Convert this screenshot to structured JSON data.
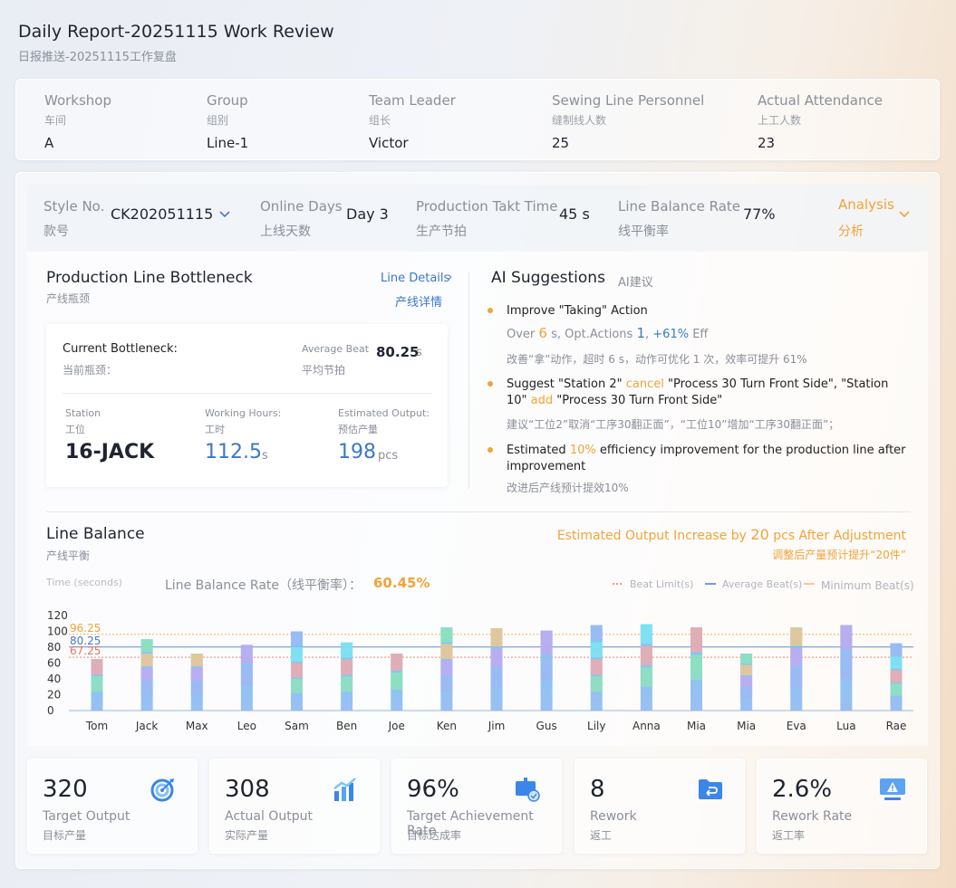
{
  "header": {
    "title": "Daily Report-20251115 Work Review",
    "subtitle": "日报推送-20251115工作复盘"
  },
  "info": [
    {
      "label": "Workshop",
      "cn": "车间",
      "value": "A"
    },
    {
      "label": "Group",
      "cn": "组别",
      "value": "Line-1"
    },
    {
      "label": "Team Leader",
      "cn": "组长",
      "value": "Victor"
    },
    {
      "label": "Sewing Line Personnel",
      "cn": "缝制线人数",
      "value": "25"
    },
    {
      "label": "Actual Attendance",
      "cn": "上工人数",
      "value": "23"
    }
  ],
  "style_bar": {
    "style_label": "Style No.",
    "style_cn": "款号",
    "style_value": "CK202051115",
    "days_label": "Online Days",
    "days_cn": "上线天数",
    "days_value": "Day 3",
    "takt_label": "Production Takt Time",
    "takt_cn": "生产节拍",
    "takt_value": "45 s",
    "balance_label": "Line Balance Rate",
    "balance_cn": "线平衡率",
    "balance_value": "77%",
    "analysis_label": "Analysis",
    "analysis_cn": "分析"
  },
  "bottleneck": {
    "title": "Production Line Bottleneck",
    "cn": "产线瓶颈",
    "details_label": "Line Details",
    "details_cn": "产线详情",
    "current_label": "Current Bottleneck:",
    "current_cn": "当前瓶颈：",
    "avg_label": "Average Beat",
    "avg_cn": "平均节拍",
    "avg_value": "80.25",
    "avg_unit": "s",
    "station_label": "Station",
    "station_cn": "工位",
    "station_value": "16-JACK",
    "hours_label": "Working Hours:",
    "hours_cn": "工时",
    "hours_value": "112.5",
    "hours_unit": "s",
    "output_label": "Estimated Output:",
    "output_cn": "预估产量",
    "output_value": "198",
    "output_unit": "pcs"
  },
  "ai": {
    "title": "AI Suggestions",
    "cn": "AI建议",
    "s1_title": "Improve \"Taking\" Action",
    "s1_a": "Over ",
    "s1_b": "6",
    "s1_c": " s, Opt.Actions ",
    "s1_d": "1",
    "s1_e": ",  ",
    "s1_f": "+61%",
    "s1_g": " Eff",
    "s1_cn": "改善“拿”动作，超时 6 s，动作可优化 1 次，效率可提升 61%",
    "s2_a": "Suggest \"Station 2\" ",
    "s2_b": "cancel",
    "s2_c": " \"Process 30 Turn Front Side\", \"Station 10\" ",
    "s2_d": "add",
    "s2_e": " \"Process 30 Turn Front Side\"",
    "s2_cn": "建议“工位2”取消“工序30翻正面”，“工位10”增加“工序30翻正面”；",
    "s3_a": "Estimated ",
    "s3_b": "10%",
    "s3_c": " efficiency improvement for the production line after improvement",
    "s3_cn": "改进后产线预计提效10%"
  },
  "balance": {
    "title": "Line Balance",
    "cn": "产线平衡",
    "increase_a": "Estimated Output Increase by ",
    "increase_b": "20",
    "increase_c": " pcs After Adjustment",
    "increase_cn": "调整后产量预计提升“20件”",
    "time_label": "Time (seconds)",
    "rate_label": "Line Balance Rate（线平衡率）：",
    "rate_value": "60.45%"
  },
  "chart_data": {
    "type": "bar",
    "ylim": [
      0,
      120
    ],
    "yticks": [
      0,
      20,
      40,
      60,
      80,
      100,
      120
    ],
    "legend": [
      {
        "name": "Beat Limit(s)",
        "color": "#e8735a"
      },
      {
        "name": "Average Beat(s)",
        "color": "#4a78c8"
      },
      {
        "name": "Minimum Beat(s)",
        "color": "#f2b97a"
      }
    ],
    "ref_lines": [
      {
        "name": "Minimum Beat(s)",
        "value": 96.25,
        "label": "96.25",
        "color": "#f2a33a"
      },
      {
        "name": "Average Beat(s)",
        "value": 80.25,
        "label": "80.25",
        "color": "#4a78c8"
      },
      {
        "name": "Beat Limit(s)",
        "value": 67.25,
        "label": "67.25",
        "color": "#e8735a"
      }
    ],
    "categories": [
      "Tom",
      "Jack",
      "Max",
      "Leo",
      "Sam",
      "Ben",
      "Joe",
      "Ken",
      "Jim",
      "Gus",
      "Lily",
      "Anna",
      "Mia",
      "Mia",
      "Eva",
      "Lua",
      "Rae"
    ],
    "values": [
      65,
      90,
      72,
      83,
      100,
      86,
      72,
      105,
      104,
      101,
      108,
      109,
      105,
      72,
      105,
      108,
      85
    ]
  },
  "kpis": [
    {
      "value": "320",
      "label": "Target Output",
      "cn": "目标产量",
      "icon": "target-icon"
    },
    {
      "value": "308",
      "label": "Actual Output",
      "cn": "实际产量",
      "icon": "bar-chart-icon"
    },
    {
      "value": "96%",
      "label": "Target Achievement Rate",
      "cn": "目标达成率",
      "icon": "achievement-icon"
    },
    {
      "value": "8",
      "label": "Rework",
      "cn": "返工",
      "icon": "rework-folder-icon"
    },
    {
      "value": "2.6%",
      "label": "Rework Rate",
      "cn": "返工率",
      "icon": "warning-monitor-icon"
    }
  ]
}
